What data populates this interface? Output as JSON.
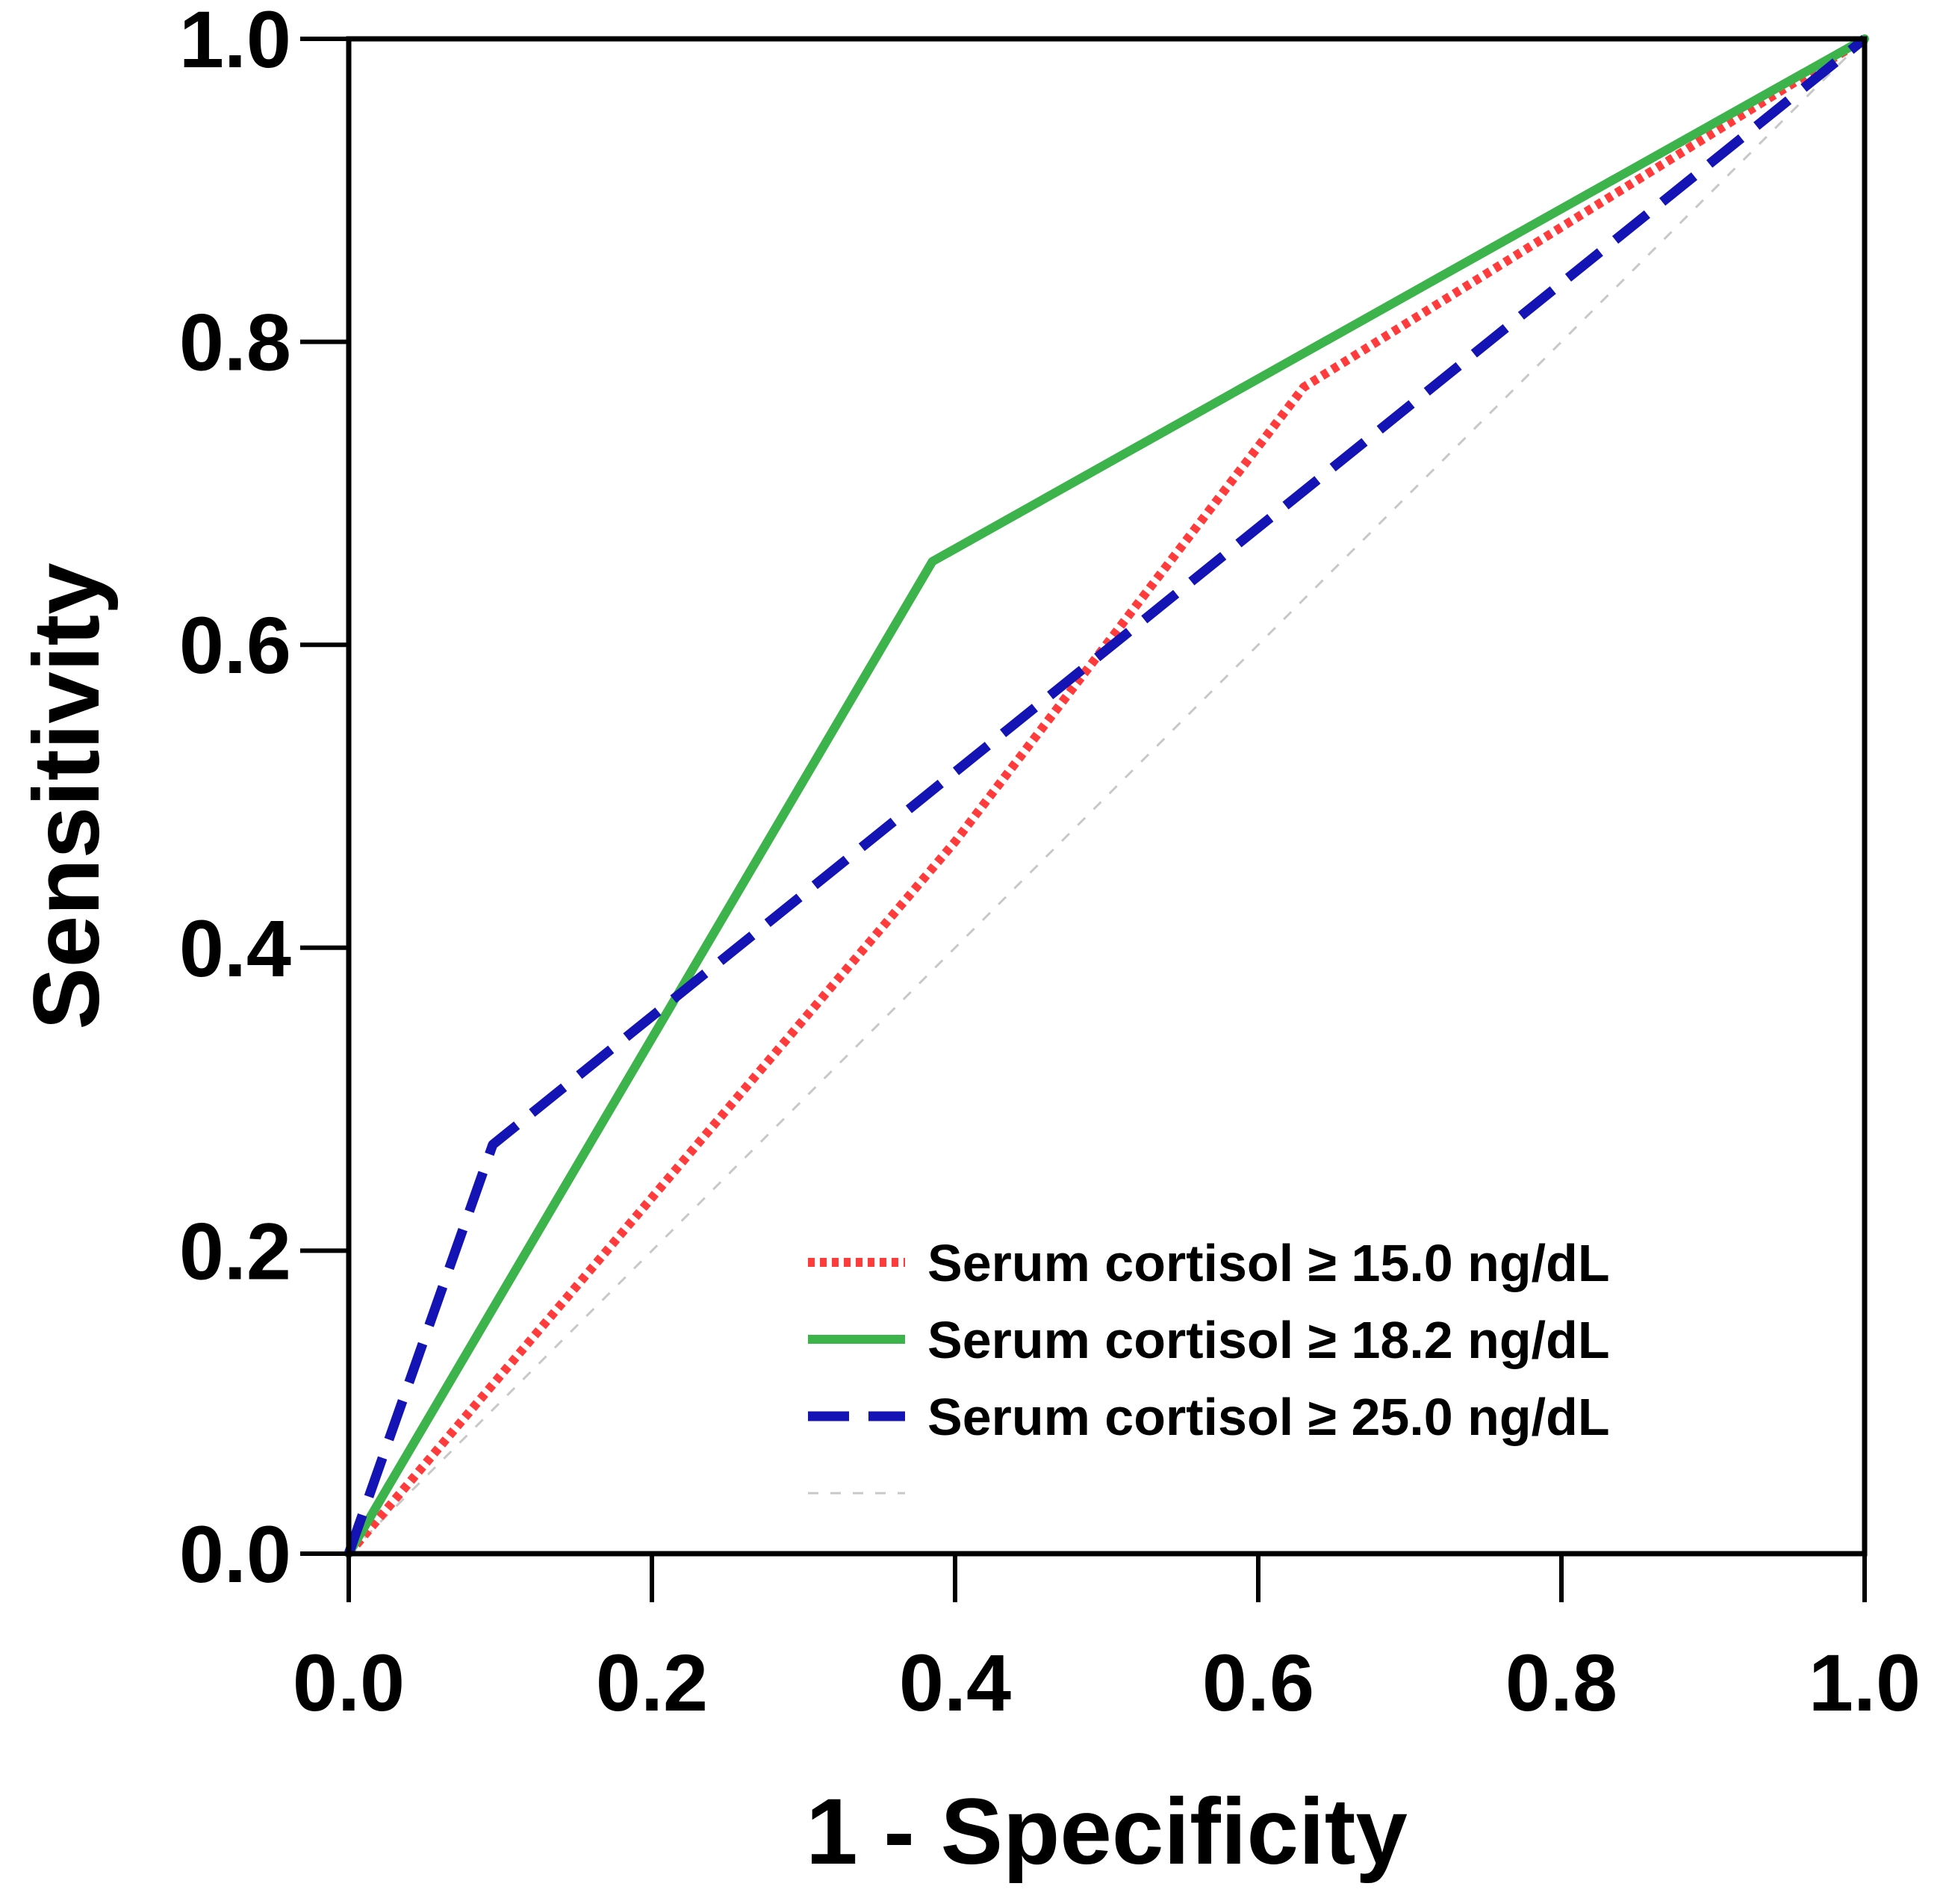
{
  "chart_data": {
    "type": "line",
    "title": "",
    "xlabel": "1 - Specificity",
    "ylabel": "Sensitivity",
    "xlim": [
      0,
      1
    ],
    "ylim": [
      0,
      1
    ],
    "xticks": [
      "0.0",
      "0.2",
      "0.4",
      "0.6",
      "0.8",
      "1.0"
    ],
    "yticks": [
      "0.0",
      "0.2",
      "0.4",
      "0.6",
      "0.8",
      "1.0"
    ],
    "grid": false,
    "legend_position": "bottom-right",
    "series": [
      {
        "name": "Serum cortisol ≥ 15.0 ng/dL",
        "color": "#ff3b3b",
        "style": "dotted",
        "x": [
          0.0,
          0.4,
          0.63,
          1.0
        ],
        "y": [
          0.0,
          0.47,
          0.77,
          1.0
        ]
      },
      {
        "name": "Serum cortisol ≥ 18.2 ng/dL",
        "color": "#3cb44b",
        "style": "solid",
        "x": [
          0.0,
          0.385,
          1.0
        ],
        "y": [
          0.0,
          0.655,
          1.0
        ]
      },
      {
        "name": "Serum cortisol ≥ 25.0 ng/dL",
        "color": "#1414b4",
        "style": "dashed",
        "x": [
          0.0,
          0.095,
          1.0
        ],
        "y": [
          0.0,
          0.27,
          1.0
        ]
      },
      {
        "name": "",
        "color": "#c8c8c8",
        "style": "reference",
        "x": [
          0.0,
          1.0
        ],
        "y": [
          0.0,
          1.0
        ]
      }
    ]
  }
}
